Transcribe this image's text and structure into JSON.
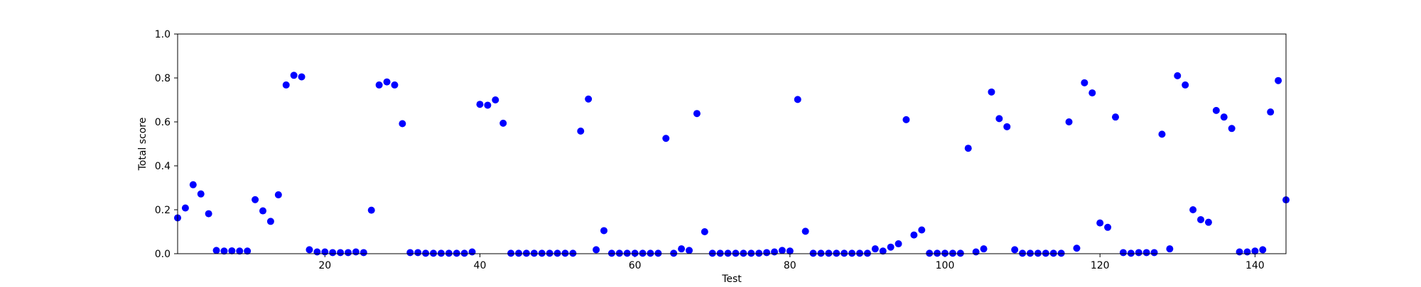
{
  "chart_data": {
    "type": "scatter",
    "xlabel": "Test",
    "ylabel": "Total score",
    "xlim": [
      1,
      144
    ],
    "ylim": [
      0.0,
      1.0
    ],
    "xticks": [
      20,
      40,
      60,
      80,
      100,
      120,
      140
    ],
    "yticks": [
      0.0,
      0.2,
      0.4,
      0.6,
      0.8,
      1.0
    ],
    "ytick_labels": [
      "0.0",
      "0.2",
      "0.4",
      "0.6",
      "0.8",
      "1.0"
    ],
    "grid": false,
    "marker_color": "#0000ff",
    "x": [
      1,
      2,
      3,
      4,
      5,
      6,
      7,
      8,
      9,
      10,
      11,
      12,
      13,
      14,
      15,
      16,
      17,
      18,
      19,
      20,
      21,
      22,
      23,
      24,
      25,
      26,
      27,
      28,
      29,
      30,
      31,
      32,
      33,
      34,
      35,
      36,
      37,
      38,
      39,
      40,
      41,
      42,
      43,
      44,
      45,
      46,
      47,
      48,
      49,
      50,
      51,
      52,
      53,
      54,
      55,
      56,
      57,
      58,
      59,
      60,
      61,
      62,
      63,
      64,
      65,
      66,
      67,
      68,
      69,
      70,
      71,
      72,
      73,
      74,
      75,
      76,
      77,
      78,
      79,
      80,
      81,
      82,
      83,
      84,
      85,
      86,
      87,
      88,
      89,
      90,
      91,
      92,
      93,
      94,
      95,
      96,
      97,
      98,
      99,
      100,
      101,
      102,
      103,
      104,
      105,
      106,
      107,
      108,
      109,
      110,
      111,
      112,
      113,
      114,
      115,
      116,
      117,
      118,
      119,
      120,
      121,
      122,
      123,
      124,
      125,
      126,
      127,
      128,
      129,
      130,
      131,
      132,
      133,
      134,
      135,
      136,
      137,
      138,
      139,
      140,
      141,
      142,
      143,
      144
    ],
    "y": [
      0.163,
      0.208,
      0.314,
      0.272,
      0.182,
      0.015,
      0.012,
      0.013,
      0.012,
      0.012,
      0.246,
      0.195,
      0.147,
      0.268,
      0.768,
      0.812,
      0.805,
      0.018,
      0.008,
      0.008,
      0.005,
      0.005,
      0.005,
      0.008,
      0.005,
      0.198,
      0.768,
      0.782,
      0.768,
      0.592,
      0.005,
      0.005,
      0.002,
      0.002,
      0.002,
      0.002,
      0.002,
      0.002,
      0.008,
      0.68,
      0.676,
      0.7,
      0.594,
      0.002,
      0.002,
      0.002,
      0.002,
      0.002,
      0.002,
      0.002,
      0.002,
      0.002,
      0.558,
      0.704,
      0.018,
      0.105,
      0.002,
      0.002,
      0.002,
      0.002,
      0.002,
      0.002,
      0.002,
      0.525,
      0.002,
      0.022,
      0.015,
      0.638,
      0.1,
      0.002,
      0.002,
      0.002,
      0.002,
      0.002,
      0.002,
      0.002,
      0.005,
      0.008,
      0.015,
      0.012,
      0.702,
      0.102,
      0.002,
      0.002,
      0.002,
      0.002,
      0.002,
      0.002,
      0.002,
      0.002,
      0.022,
      0.012,
      0.03,
      0.045,
      0.61,
      0.085,
      0.108,
      0.002,
      0.002,
      0.002,
      0.002,
      0.002,
      0.48,
      0.008,
      0.022,
      0.736,
      0.615,
      0.578,
      0.018,
      0.002,
      0.002,
      0.002,
      0.002,
      0.002,
      0.002,
      0.6,
      0.025,
      0.778,
      0.732,
      0.14,
      0.12,
      0.622,
      0.005,
      0.002,
      0.005,
      0.005,
      0.005,
      0.544,
      0.022,
      0.81,
      0.768,
      0.2,
      0.155,
      0.143,
      0.652,
      0.622,
      0.57,
      0.008,
      0.008,
      0.012,
      0.018,
      0.645,
      0.788,
      0.245
    ]
  }
}
